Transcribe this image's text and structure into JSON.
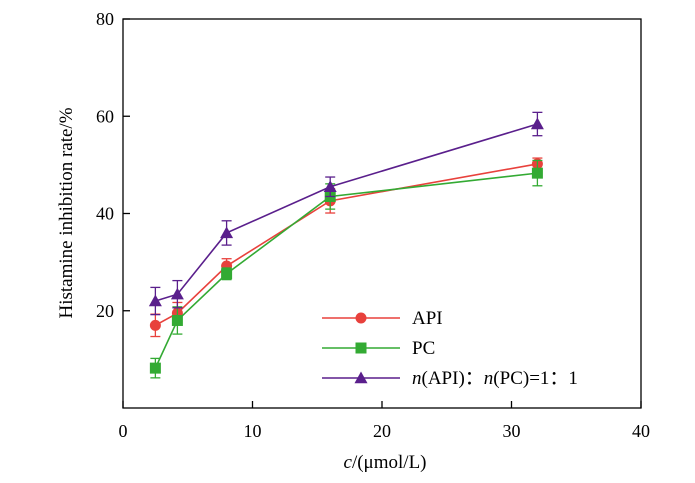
{
  "chart_data": {
    "type": "line",
    "xlabel_italic": "c",
    "xlabel_rest": "/(μmol/L)",
    "ylabel": "Histamine inhibition rate/%",
    "xlim": [
      0,
      40
    ],
    "ylim": [
      0,
      80
    ],
    "xticks": [
      0,
      10,
      20,
      30,
      40
    ],
    "yticks": [
      20,
      40,
      60,
      80
    ],
    "legend_position": "bottom-right",
    "grid": false,
    "series": [
      {
        "name": "API",
        "color": "#e8413c",
        "marker": "circle",
        "x": [
          2.5,
          4.2,
          8.0,
          16.0,
          32.0
        ],
        "y": [
          17.0,
          19.5,
          29.2,
          42.6,
          50.2
        ],
        "err": [
          2.3,
          2.2,
          1.5,
          2.5,
          1.2
        ]
      },
      {
        "name": "PC",
        "color": "#33aa33",
        "marker": "square",
        "x": [
          2.5,
          4.2,
          8.0,
          16.0,
          32.0
        ],
        "y": [
          8.2,
          18.0,
          27.6,
          43.5,
          48.3
        ],
        "err": [
          2.0,
          2.8,
          1.2,
          2.6,
          2.6
        ]
      },
      {
        "name_parts": [
          {
            "t": "n",
            "italic": true
          },
          {
            "t": "(API)",
            "italic": false
          },
          {
            "t": "：",
            "italic": false
          },
          {
            "t": "n",
            "italic": true
          },
          {
            "t": "(PC)=1",
            "italic": false
          },
          {
            "t": "：",
            "italic": false
          },
          {
            "t": "1",
            "italic": false
          }
        ],
        "color": "#5a1f8c",
        "marker": "triangle",
        "x": [
          2.5,
          4.2,
          8.0,
          16.0,
          32.0
        ],
        "y": [
          22.0,
          23.4,
          36.0,
          45.5,
          58.4
        ],
        "err": [
          2.8,
          2.8,
          2.5,
          2.0,
          2.4
        ]
      }
    ]
  }
}
